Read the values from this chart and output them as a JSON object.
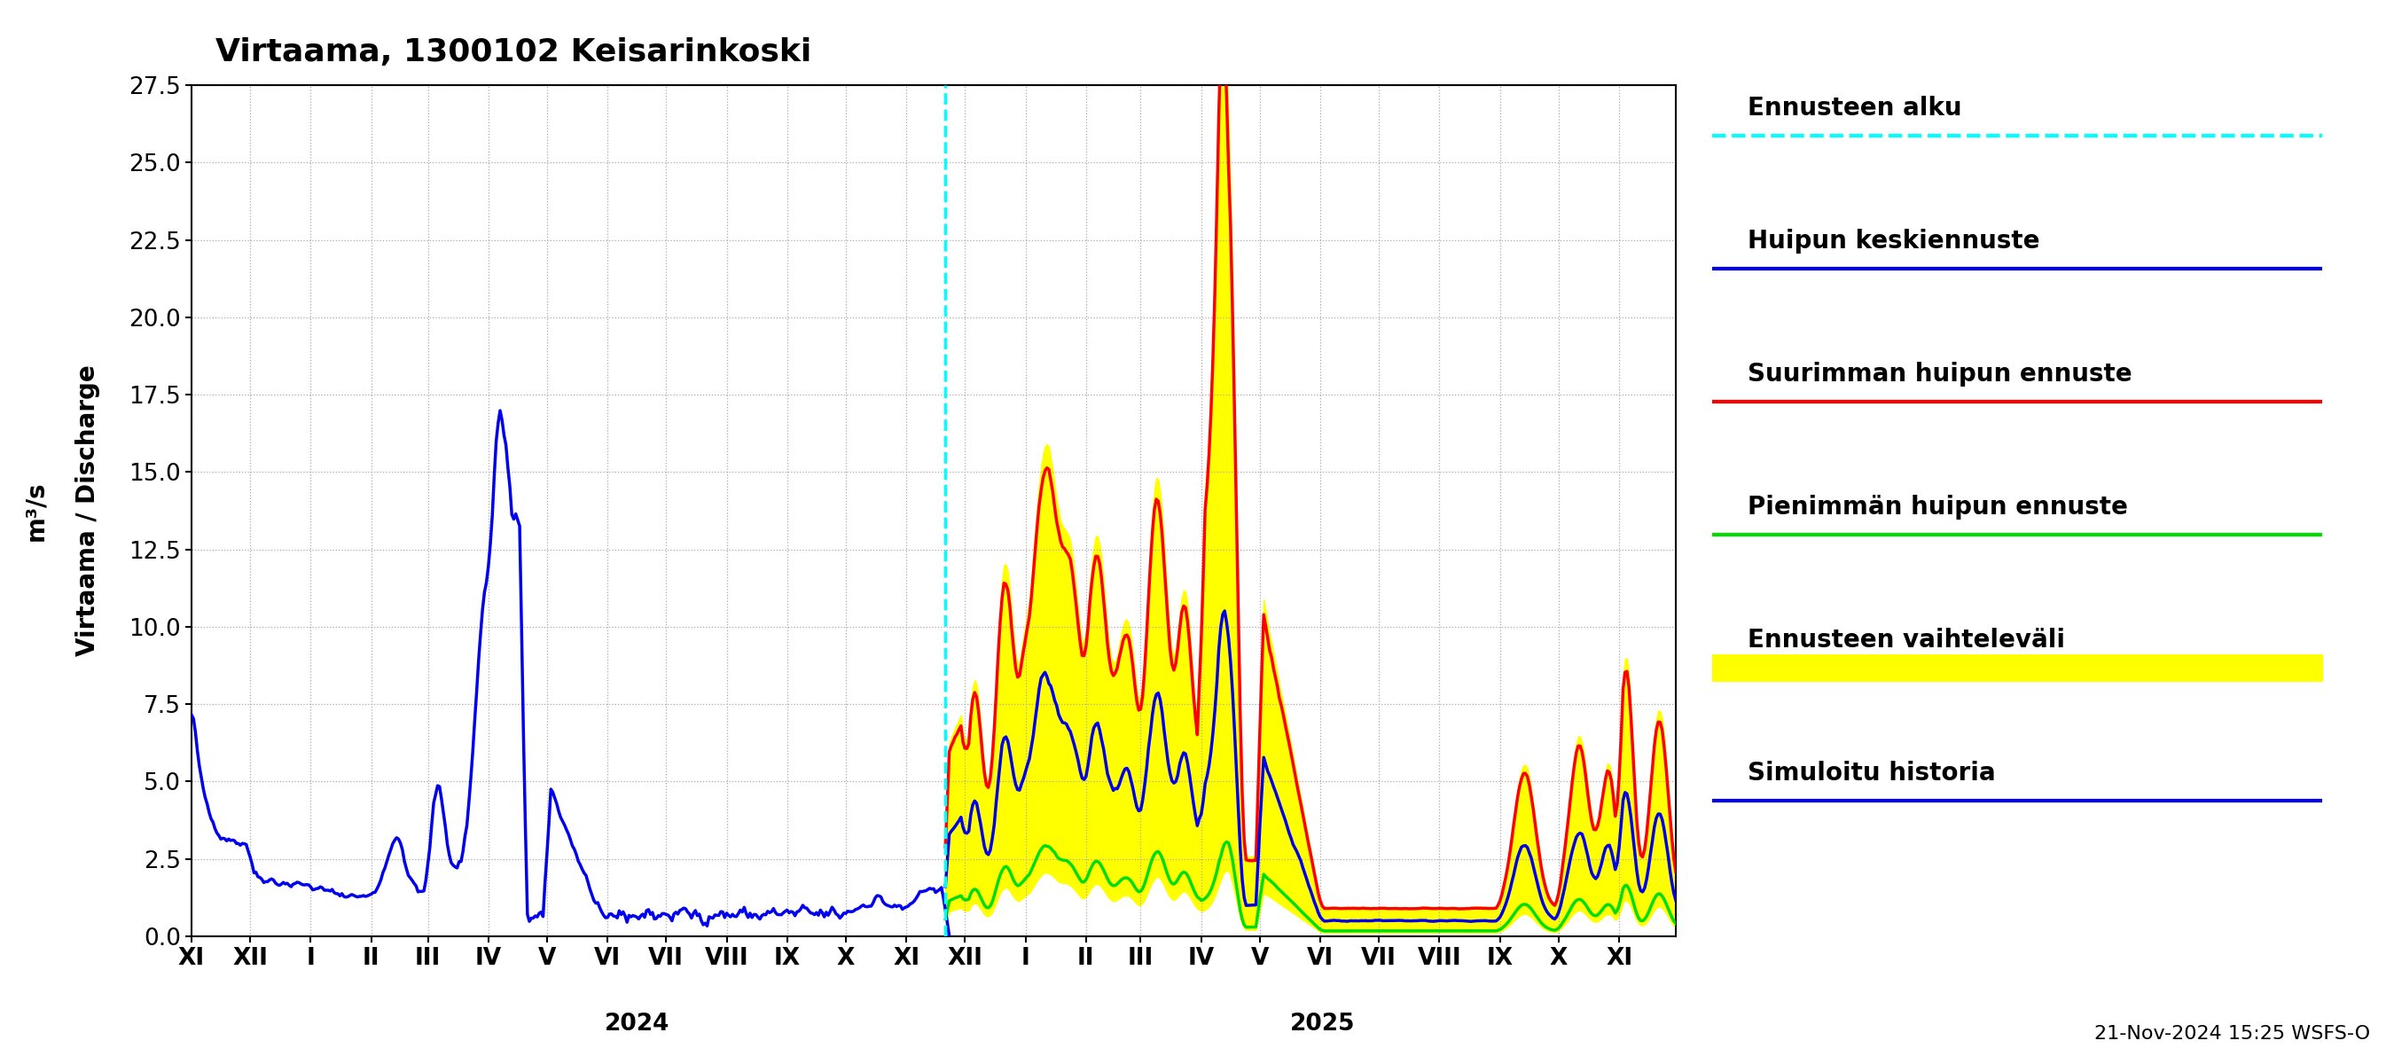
{
  "title": "Virtaama, 1300102 Keisarinkoski",
  "ylabel1": "Virtaama / Discharge",
  "ylabel2": "m³/s",
  "ylim": [
    0.0,
    27.5
  ],
  "yticks": [
    0.0,
    2.5,
    5.0,
    7.5,
    10.0,
    12.5,
    15.0,
    17.5,
    20.0,
    22.5,
    25.0,
    27.5
  ],
  "date_label": "21-Nov-2024 15:25 WSFS-O",
  "bg_color": "#ffffff",
  "grid_color": "#aaaaaa",
  "color_history": "#0000ee",
  "color_mean": "#0000ee",
  "color_max": "#ff0000",
  "color_min": "#00dd00",
  "color_band": "#ffff00",
  "color_vline": "#00ffff",
  "legend_labels": [
    "Ennusteen alku",
    "Huipun keskiennuste",
    "Suurimman huipun ennuste",
    "Pienimmän huipun ennuste",
    "Ennusteen vaihteleväli",
    "Simuloitu historia"
  ],
  "legend_colors": [
    "#00ffff",
    "#0000ee",
    "#ff0000",
    "#00dd00",
    "#ffff00",
    "#0000ee"
  ],
  "legend_styles": [
    "dashed",
    "solid",
    "solid",
    "solid",
    "solid",
    "solid"
  ],
  "legend_lws": [
    3,
    3,
    3,
    3,
    12,
    3
  ]
}
